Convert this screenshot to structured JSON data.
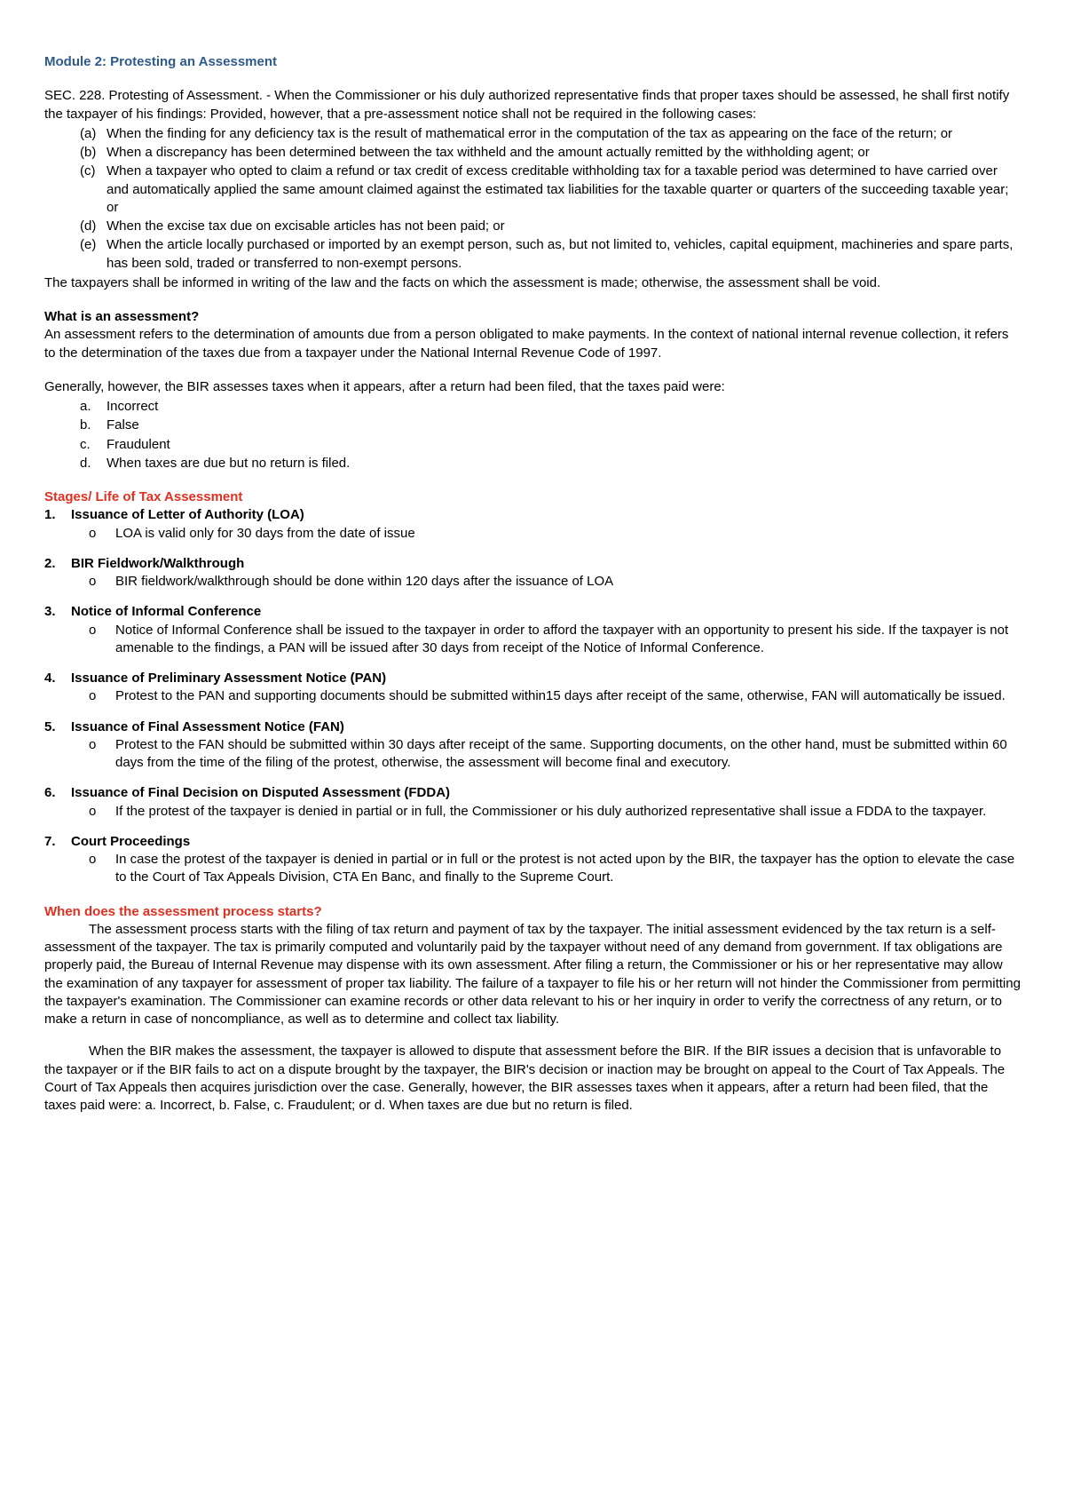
{
  "title": "Module 2: Protesting an Assessment",
  "intro": "SEC. 228. Protesting of Assessment. - When the Commissioner or his duly authorized representative finds that proper taxes should be assessed, he shall first notify the taxpayer of his findings: Provided, however, that a pre-assessment notice shall not be required in the following cases:",
  "cases": [
    "When the finding for any deficiency tax is the result of mathematical error in the computation of the tax as appearing on the face of the return; or",
    "When a discrepancy has been determined between the tax withheld and the amount actually remitted by the withholding agent; or",
    "When a taxpayer who opted to claim a refund or tax credit of excess creditable withholding tax for a taxable period was determined to have carried over and automatically applied the same amount claimed against the estimated tax liabilities for the taxable quarter or quarters of the succeeding taxable year; or",
    "When the excise tax due on excisable articles has not been paid; or",
    "When the article locally purchased or imported by an exempt person, such as, but not limited to, vehicles, capital equipment, machineries and spare parts, has been sold, traded or transferred to non-exempt persons."
  ],
  "post_cases": "The taxpayers shall be informed in writing of the law and the facts on which the assessment is made; otherwise, the assessment shall be void.",
  "assess_q": "What is an assessment?",
  "assess_a": "An assessment refers to the determination of amounts due from a person obligated to make payments. In the context of national internal revenue collection, it refers to the determination of the taxes due from a taxpayer under the National Internal Revenue Code of 1997.",
  "generally": "Generally, however, the BIR assesses taxes when it appears, after a return had been filed, that the taxes paid were:",
  "reasons": [
    "Incorrect",
    "False",
    "Fraudulent",
    "When taxes are due but no return is filed."
  ],
  "stages_title": "Stages/ Life of Tax Assessment",
  "stages": [
    {
      "title": "Issuance of Letter of Authority (LOA)",
      "detail": "LOA is valid only for 30 days from the date of issue"
    },
    {
      "title": "BIR Fieldwork/Walkthrough",
      "detail": "BIR fieldwork/walkthrough should be done within 120 days after the issuance of LOA"
    },
    {
      "title": "Notice of Informal Conference",
      "detail": "Notice of Informal Conference shall be issued to the taxpayer in order to afford the taxpayer with an opportunity to present his side. If the taxpayer is not amenable to the findings, a PAN will be issued after 30 days from receipt of the Notice of Informal Conference."
    },
    {
      "title": "Issuance of Preliminary Assessment Notice (PAN)",
      "detail": "Protest to the PAN and supporting documents should be submitted within15 days after receipt of the same, otherwise, FAN will automatically be issued."
    },
    {
      "title": "Issuance of Final Assessment Notice (FAN)",
      "detail": "Protest to the FAN should be submitted within 30 days after receipt of the same. Supporting documents, on the other hand, must be submitted within 60 days from the time of the filing of the protest, otherwise, the assessment will become final and executory."
    },
    {
      "title": "Issuance of Final Decision on Disputed Assessment (FDDA)",
      "detail": "If the protest of the taxpayer is denied in partial or in full, the Commissioner or his duly authorized representative shall issue a FDDA to the taxpayer."
    },
    {
      "title": "Court Proceedings",
      "detail": "In case the protest of the taxpayer is denied in partial or in full or the protest is not acted upon by the BIR, the taxpayer has the option to elevate the case to the Court of Tax Appeals Division, CTA En Banc, and finally to the Supreme Court."
    }
  ],
  "when_title": "When does the assessment process starts?",
  "when_p1": "The assessment process starts with the filing of tax return and payment of tax by the taxpayer. The initial assessment evidenced by the tax return is a self-assessment of the taxpayer. The tax is primarily computed and voluntarily paid by the taxpayer without need of any demand from government. If tax obligations are properly paid, the Bureau of Internal Revenue may dispense with its own assessment. After filing a return, the Commissioner or his or her representative may allow the examination of any taxpayer for assessment of proper tax liability. The failure of a taxpayer to file his or her return will not hinder the Commissioner from permitting the taxpayer's examination. The Commissioner can examine records or other data relevant to his or her inquiry in order to verify the correctness of any return, or to make a return in case of noncompliance, as well as to determine and collect tax liability.",
  "when_p2": "When the BIR makes the assessment, the taxpayer is allowed to dispute that assessment before the BIR. If the BIR issues a decision that is unfavorable to the taxpayer or if the BIR fails to act on a dispute brought by the taxpayer, the BIR's decision or inaction may be brought on appeal to the Court of Tax Appeals. The Court of Tax Appeals then acquires jurisdiction over the case. Generally, however, the BIR assesses taxes when it appears, after a return had been filed, that the taxes paid were: a. Incorrect, b. False, c. Fraudulent; or d. When taxes are due but no return is filed.",
  "colors": {
    "title": "#2e5a8a",
    "red": "#e03020",
    "text": "#000000",
    "bg": "#ffffff"
  },
  "markers": {
    "paren": [
      "(a)",
      "(b)",
      "(c)",
      "(d)",
      "(e)"
    ],
    "alpha": [
      "a.",
      "b.",
      "c.",
      "d."
    ],
    "num": [
      "1.",
      "2.",
      "3.",
      "4.",
      "5.",
      "6.",
      "7."
    ],
    "circ": "o"
  }
}
